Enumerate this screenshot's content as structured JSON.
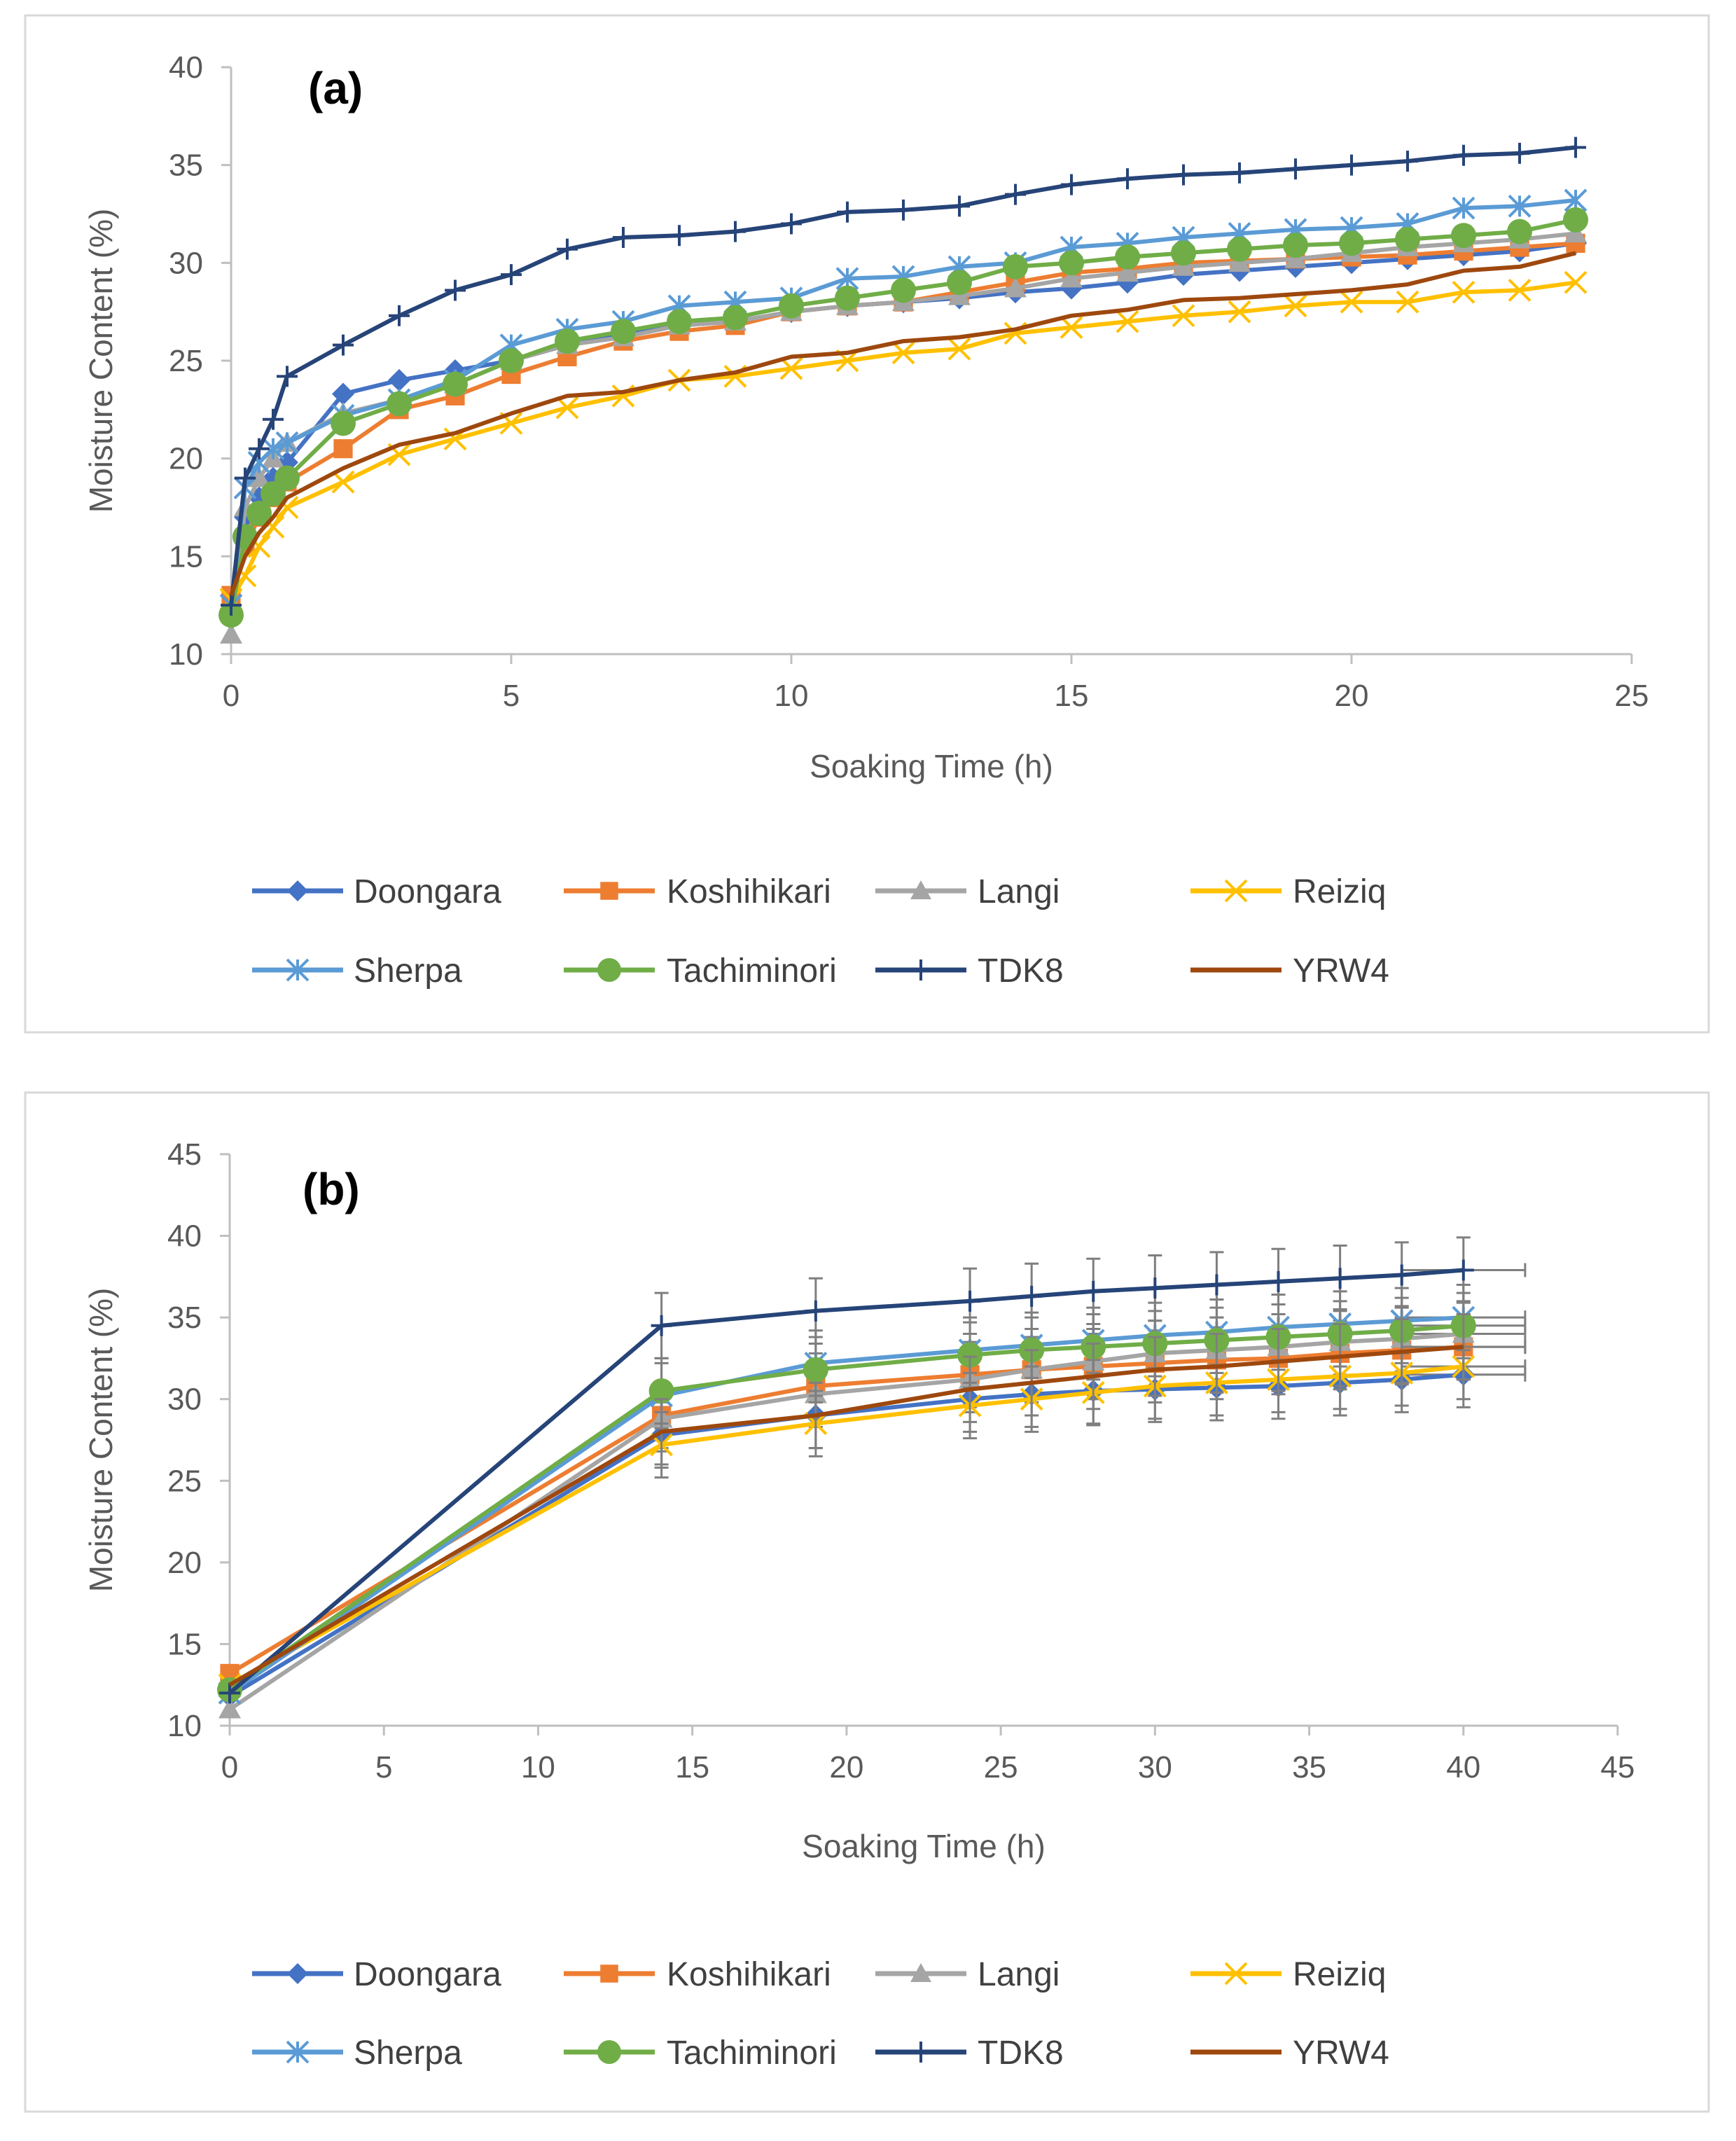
{
  "chart_data": [
    {
      "type": "line",
      "panel_label": "(a)",
      "xlabel": "Soaking Time (h)",
      "ylabel": "Moisture Content (%)",
      "xlim": [
        0,
        25
      ],
      "ylim": [
        10,
        40
      ],
      "x_ticks": [
        "0",
        "5",
        "10",
        "15",
        "20",
        "25"
      ],
      "y_ticks": [
        "10",
        "15",
        "20",
        "25",
        "30",
        "35",
        "40"
      ],
      "x_tick_values": [
        0,
        5,
        10,
        15,
        20,
        25
      ],
      "y_tick_values": [
        10,
        15,
        20,
        25,
        30,
        35,
        40
      ],
      "legend": [
        "Doongara",
        "Koshihikari",
        "Langi",
        "Reiziq",
        "Sherpa",
        "Tachiminori",
        "TDK8",
        "YRW4"
      ],
      "x": [
        0,
        0.25,
        0.5,
        0.75,
        1,
        2,
        3,
        4,
        5,
        6,
        7,
        8,
        9,
        10,
        11,
        12,
        13,
        14,
        15,
        16,
        17,
        18,
        19,
        20,
        21,
        22,
        23,
        24
      ],
      "series": [
        {
          "name": "Doongara",
          "color": "#4472c4",
          "marker": "diamond",
          "values": [
            11.8,
            17.0,
            18.0,
            19.0,
            19.8,
            23.3,
            24.0,
            24.5,
            25.0,
            25.8,
            26.3,
            26.8,
            27.0,
            27.5,
            27.8,
            28.0,
            28.2,
            28.5,
            28.7,
            29.0,
            29.4,
            29.6,
            29.8,
            30.0,
            30.2,
            30.4,
            30.6,
            31.0
          ]
        },
        {
          "name": "Koshihikari",
          "color": "#ed7d31",
          "marker": "square",
          "values": [
            13.0,
            15.5,
            17.0,
            18.0,
            18.8,
            20.5,
            22.5,
            23.2,
            24.3,
            25.2,
            26.0,
            26.5,
            26.8,
            27.5,
            27.8,
            28.0,
            28.5,
            29.0,
            29.5,
            29.7,
            30.0,
            30.1,
            30.2,
            30.3,
            30.4,
            30.6,
            30.8,
            31.0
          ]
        },
        {
          "name": "Langi",
          "color": "#a5a5a5",
          "marker": "triangle",
          "values": [
            11.0,
            17.5,
            19.0,
            20.0,
            20.8,
            22.3,
            23.0,
            23.8,
            25.0,
            25.8,
            26.2,
            26.8,
            27.0,
            27.5,
            27.8,
            28.0,
            28.3,
            28.7,
            29.2,
            29.5,
            29.8,
            30.0,
            30.2,
            30.5,
            30.8,
            31.0,
            31.2,
            31.5
          ]
        },
        {
          "name": "Reiziq",
          "color": "#ffc000",
          "marker": "x",
          "values": [
            12.8,
            14.0,
            15.5,
            16.5,
            17.5,
            18.8,
            20.2,
            21.0,
            21.8,
            22.6,
            23.2,
            24.0,
            24.2,
            24.6,
            25.0,
            25.4,
            25.6,
            26.4,
            26.7,
            27.0,
            27.3,
            27.5,
            27.8,
            28.0,
            28.0,
            28.5,
            28.6,
            29.0
          ]
        },
        {
          "name": "Sherpa",
          "color": "#5b9bd5",
          "marker": "asterisk",
          "values": [
            12.5,
            18.5,
            19.8,
            20.5,
            20.8,
            22.2,
            23.0,
            24.0,
            25.8,
            26.6,
            27.0,
            27.8,
            28.0,
            28.2,
            29.2,
            29.3,
            29.8,
            30.0,
            30.8,
            31.0,
            31.3,
            31.5,
            31.7,
            31.8,
            32.0,
            32.8,
            32.9,
            33.2
          ]
        },
        {
          "name": "Tachiminori",
          "color": "#70ad47",
          "marker": "circle",
          "values": [
            12.0,
            16.0,
            17.2,
            18.2,
            19.0,
            21.8,
            22.8,
            23.8,
            25.0,
            26.0,
            26.5,
            27.0,
            27.2,
            27.8,
            28.2,
            28.6,
            29.0,
            29.8,
            30.0,
            30.3,
            30.5,
            30.7,
            30.9,
            31.0,
            31.2,
            31.4,
            31.6,
            32.2
          ]
        },
        {
          "name": "TDK8",
          "color": "#264478",
          "marker": "plus",
          "values": [
            12.5,
            19.0,
            20.5,
            22.0,
            24.2,
            25.8,
            27.3,
            28.6,
            29.4,
            30.7,
            31.3,
            31.4,
            31.6,
            32.0,
            32.6,
            32.7,
            32.9,
            33.5,
            34.0,
            34.3,
            34.5,
            34.6,
            34.8,
            35.0,
            35.2,
            35.5,
            35.6,
            35.9
          ]
        },
        {
          "name": "YRW4",
          "color": "#9e480e",
          "marker": "none",
          "values": [
            13.0,
            15.0,
            16.2,
            17.0,
            18.0,
            19.5,
            20.7,
            21.3,
            22.3,
            23.2,
            23.4,
            24.0,
            24.4,
            25.2,
            25.4,
            26.0,
            26.2,
            26.6,
            27.3,
            27.6,
            28.1,
            28.2,
            28.4,
            28.6,
            28.9,
            29.6,
            29.8,
            30.5
          ]
        }
      ]
    },
    {
      "type": "line",
      "panel_label": "(b)",
      "xlabel": "Soaking Time (h)",
      "ylabel": "Moisture Content (%)",
      "xlim": [
        0,
        45
      ],
      "ylim": [
        10,
        45
      ],
      "x_ticks": [
        "0",
        "5",
        "10",
        "15",
        "20",
        "25",
        "30",
        "35",
        "40",
        "45"
      ],
      "y_ticks": [
        "10",
        "15",
        "20",
        "25",
        "30",
        "35",
        "40",
        "45"
      ],
      "x_tick_values": [
        0,
        5,
        10,
        15,
        20,
        25,
        30,
        35,
        40,
        45
      ],
      "y_tick_values": [
        10,
        15,
        20,
        25,
        30,
        35,
        40,
        45
      ],
      "legend": [
        "Doongara",
        "Koshihikari",
        "Langi",
        "Reiziq",
        "Sherpa",
        "Tachiminori",
        "TDK8",
        "YRW4"
      ],
      "x": [
        0,
        14,
        19,
        24,
        26,
        28,
        30,
        32,
        34,
        36,
        38,
        40
      ],
      "error_bar_y": 2,
      "error_bar_x": 2,
      "series": [
        {
          "name": "Doongara",
          "color": "#4472c4",
          "marker": "diamond",
          "values": [
            11.8,
            27.8,
            29.0,
            30.0,
            30.3,
            30.5,
            30.6,
            30.7,
            30.8,
            31.0,
            31.2,
            31.5
          ]
        },
        {
          "name": "Koshihikari",
          "color": "#ed7d31",
          "marker": "square",
          "values": [
            13.2,
            29.0,
            30.8,
            31.5,
            31.8,
            32.0,
            32.2,
            32.4,
            32.5,
            32.8,
            33.0,
            33.2
          ]
        },
        {
          "name": "Langi",
          "color": "#a5a5a5",
          "marker": "triangle",
          "values": [
            11.0,
            28.8,
            30.3,
            31.2,
            31.8,
            32.3,
            32.8,
            33.0,
            33.2,
            33.5,
            33.7,
            34.0
          ]
        },
        {
          "name": "Reiziq",
          "color": "#ffc000",
          "marker": "x",
          "values": [
            12.5,
            27.2,
            28.5,
            29.6,
            30.0,
            30.4,
            30.8,
            31.0,
            31.2,
            31.4,
            31.6,
            32.0
          ]
        },
        {
          "name": "Sherpa",
          "color": "#5b9bd5",
          "marker": "asterisk",
          "values": [
            12.0,
            30.2,
            32.2,
            33.0,
            33.3,
            33.6,
            33.9,
            34.1,
            34.4,
            34.6,
            34.8,
            35.0
          ]
        },
        {
          "name": "Tachiminori",
          "color": "#70ad47",
          "marker": "circle",
          "values": [
            12.2,
            30.5,
            31.8,
            32.7,
            33.0,
            33.2,
            33.4,
            33.6,
            33.8,
            34.0,
            34.2,
            34.5
          ]
        },
        {
          "name": "TDK8",
          "color": "#264478",
          "marker": "plus",
          "values": [
            12.0,
            34.5,
            35.4,
            36.0,
            36.3,
            36.6,
            36.8,
            37.0,
            37.2,
            37.4,
            37.6,
            37.9
          ]
        },
        {
          "name": "YRW4",
          "color": "#9e480e",
          "marker": "none",
          "values": [
            12.5,
            28.0,
            29.0,
            30.6,
            31.0,
            31.4,
            31.8,
            32.0,
            32.3,
            32.6,
            32.9,
            33.2
          ]
        }
      ]
    }
  ]
}
